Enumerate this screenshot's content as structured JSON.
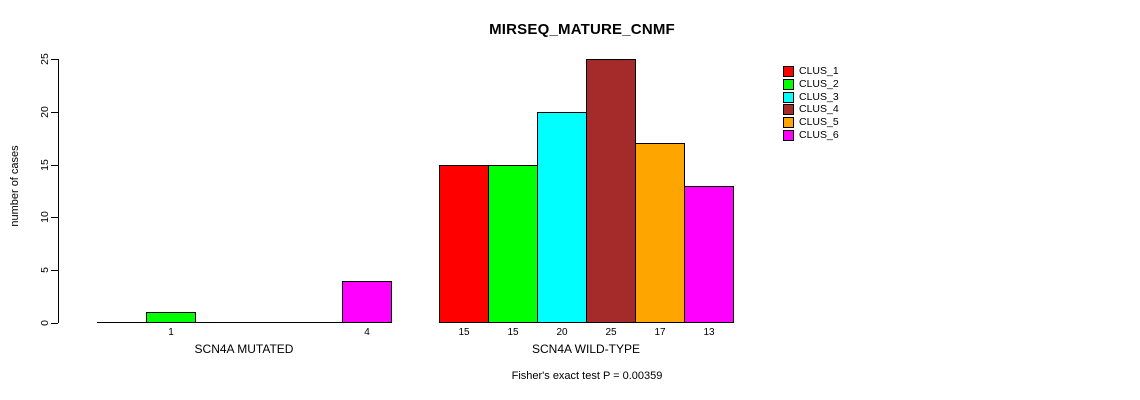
{
  "chart_data": {
    "type": "bar",
    "title": "MIRSEQ_MATURE_CNMF",
    "xlabel": "",
    "ylabel": "number of cases",
    "ylim": [
      0,
      25
    ],
    "yticks": [
      0,
      5,
      10,
      15,
      20,
      25
    ],
    "grid": false,
    "background": "#ffffff",
    "bar_border_color": "#000000",
    "series_colors": [
      "#FF0000",
      "#00FF00",
      "#00FFFF",
      "#A52A2A",
      "#FFA500",
      "#FF00FF"
    ],
    "series_names": [
      "CLUS_1",
      "CLUS_2",
      "CLUS_3",
      "CLUS_4",
      "CLUS_5",
      "CLUS_6"
    ],
    "groups": [
      {
        "label": "SCN4A MUTATED",
        "values": [
          0,
          1,
          0,
          0,
          0,
          4
        ]
      },
      {
        "label": "SCN4A WILD-TYPE",
        "values": [
          15,
          15,
          20,
          25,
          17,
          13
        ]
      }
    ],
    "value_labels_shown": "nonzero-only",
    "legend": {
      "position": "right",
      "entries": [
        {
          "label": "CLUS_1",
          "color": "#FF0000"
        },
        {
          "label": "CLUS_2",
          "color": "#00FF00"
        },
        {
          "label": "CLUS_3",
          "color": "#00FFFF"
        },
        {
          "label": "CLUS_4",
          "color": "#A52A2A"
        },
        {
          "label": "CLUS_5",
          "color": "#FFA500"
        },
        {
          "label": "CLUS_6",
          "color": "#FF00FF"
        }
      ]
    },
    "footnote": "Fisher's exact test P = 0.00359"
  }
}
